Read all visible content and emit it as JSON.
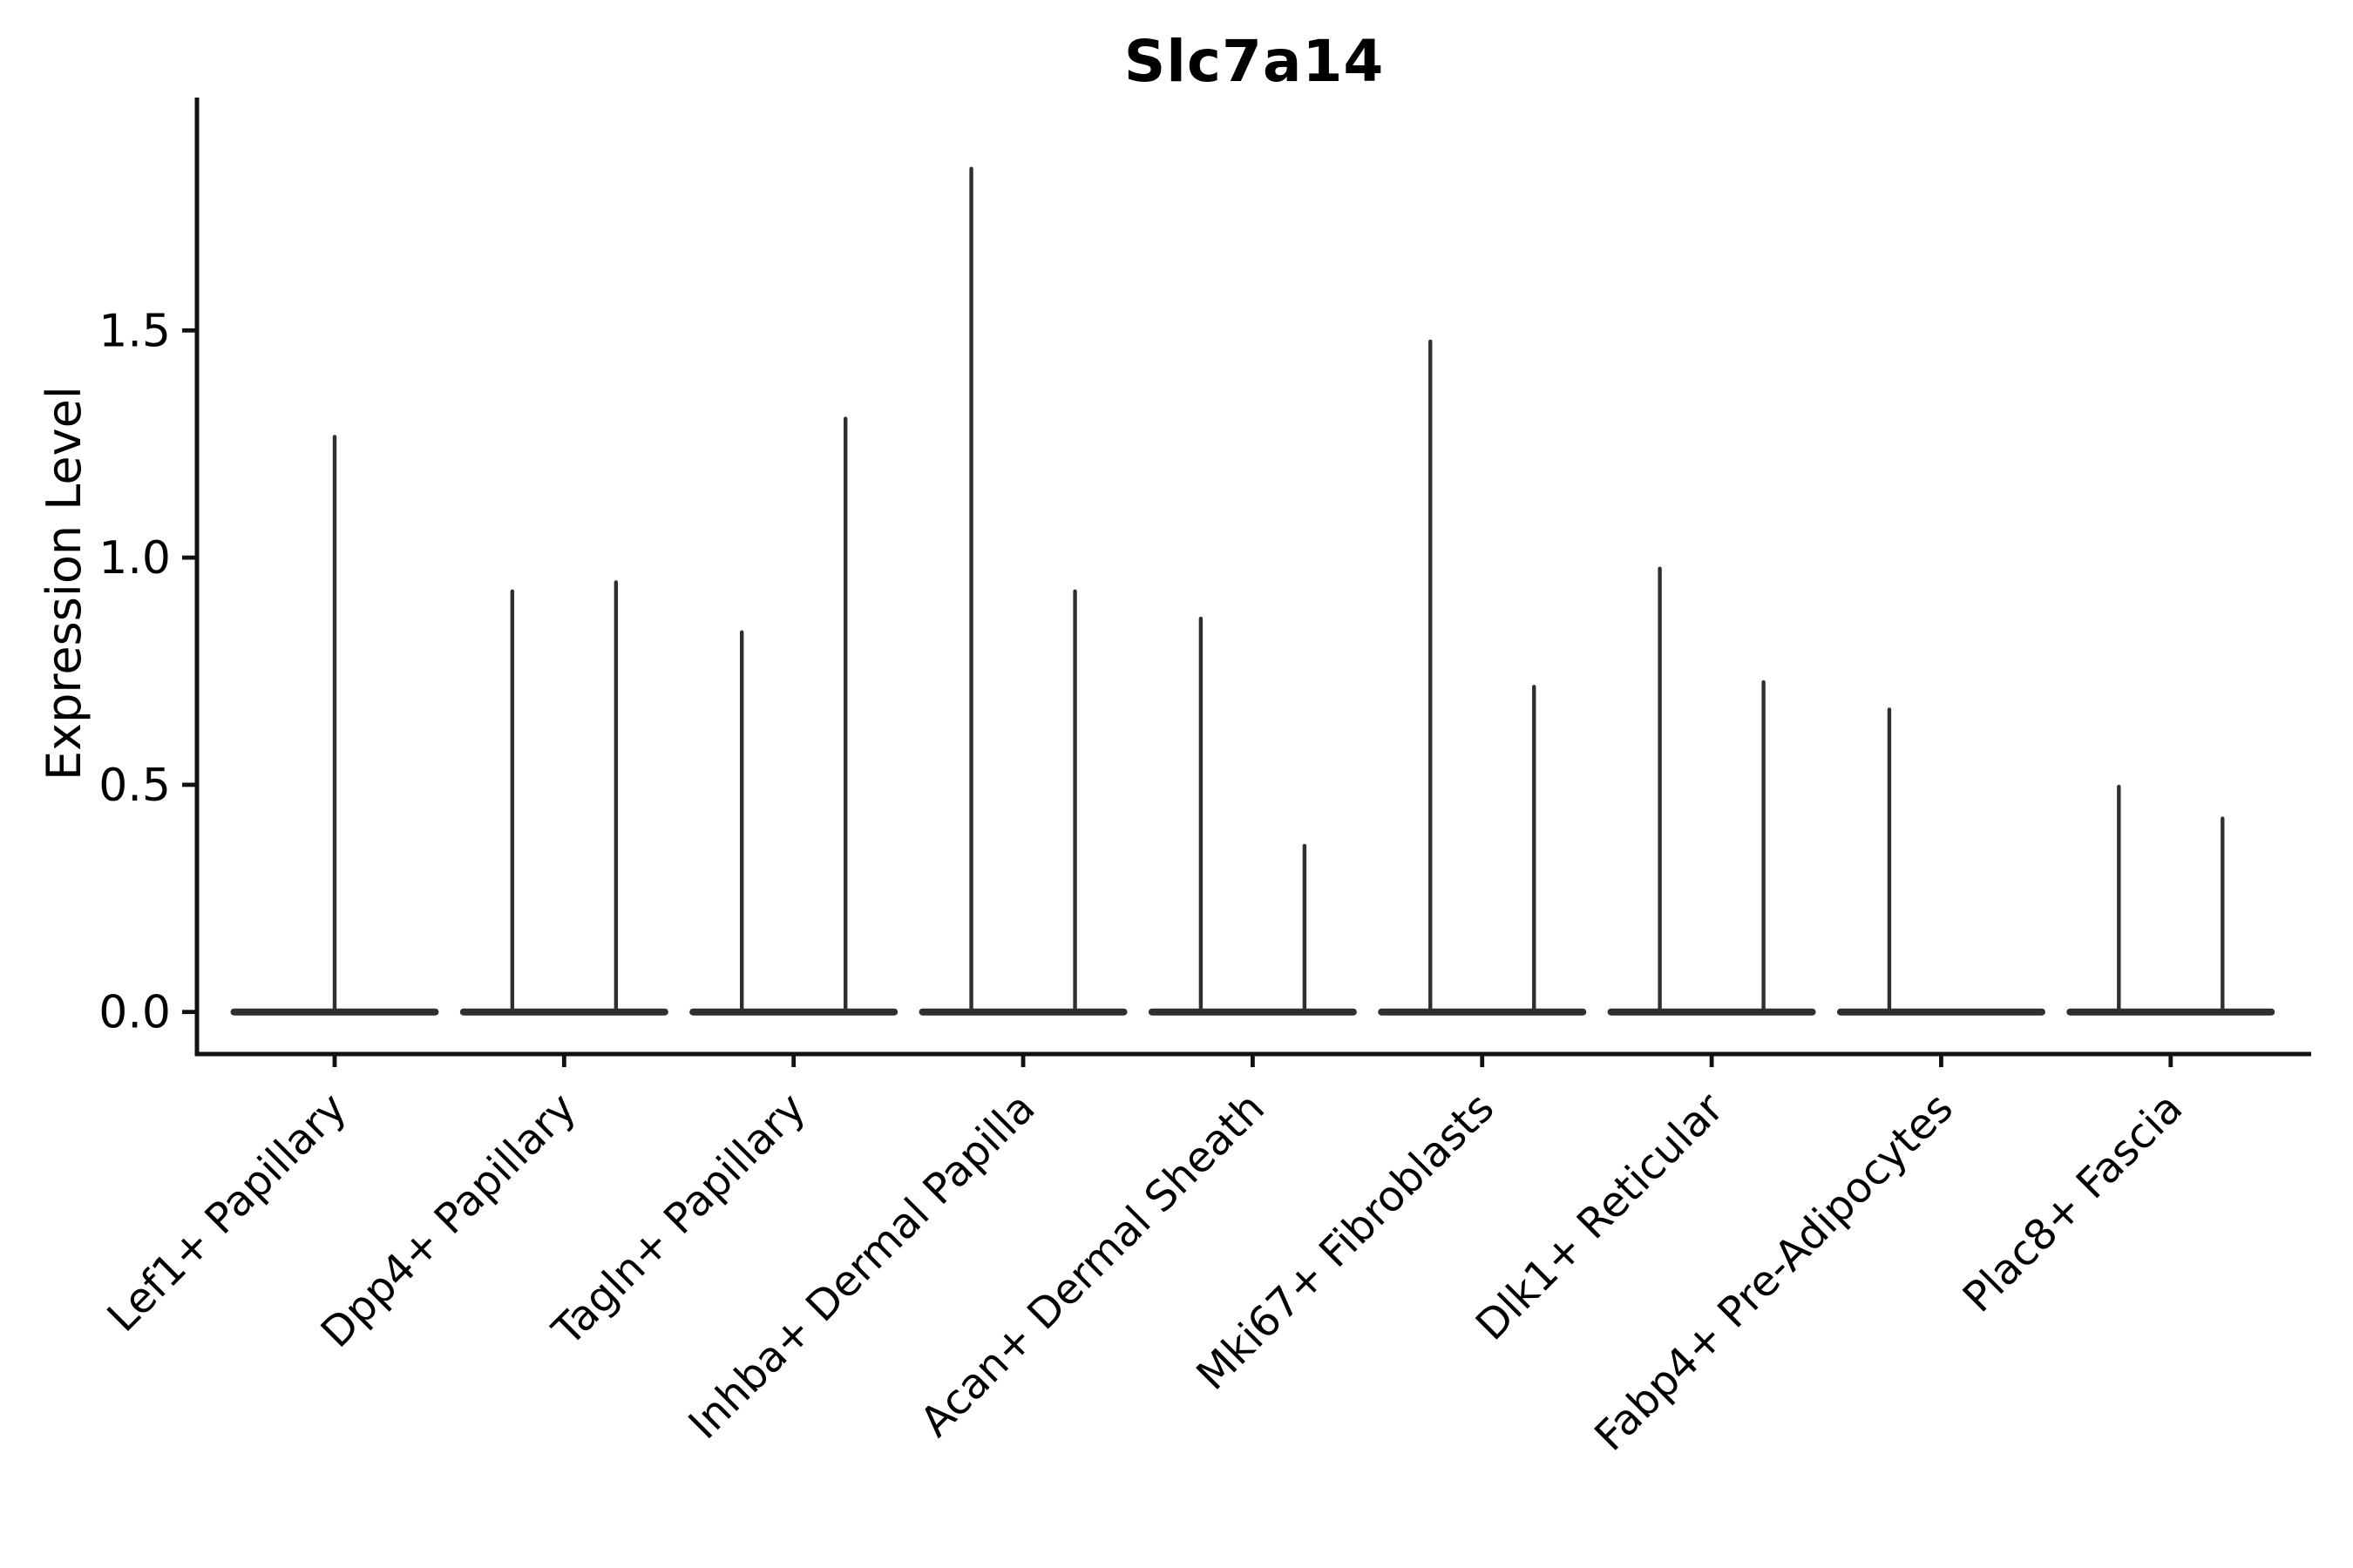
{
  "chart_data": {
    "type": "violin",
    "title": "Slc7a14",
    "xlabel": "",
    "ylabel": "Expression Level",
    "ylim": [
      0,
      2.0
    ],
    "yticks": [
      0.0,
      0.5,
      1.0,
      1.5
    ],
    "ytick_labels": [
      "0.0",
      "0.5",
      "1.0",
      "1.5"
    ],
    "grid": false,
    "legend": "none",
    "style_note": "needle-thin split violins; all density mass flattened at 0 with a thin spike rising to the max expression value",
    "line_color": "#2f2f2f",
    "axis_color": "#111111",
    "background_color": "#ffffff",
    "categories": [
      "Lef1+ Papillary",
      "Dpp4+ Papillary",
      "Tagln+ Papillary",
      "Inhba+ Dermal Papilla",
      "Acan+ Dermal Sheath",
      "Mki67+ Fibroblasts",
      "Dlk1+ Reticular",
      "Fabp4+ Pre-Adipocytes",
      "Plac8+ Fascia"
    ],
    "violins": [
      {
        "category": "Lef1+ Papillary",
        "baseline_value": 0,
        "spikes": [
          {
            "slot": "center",
            "peak": 1.27
          }
        ]
      },
      {
        "category": "Dpp4+ Papillary",
        "baseline_value": 0,
        "spikes": [
          {
            "slot": "left",
            "peak": 0.93
          },
          {
            "slot": "right",
            "peak": 0.95
          }
        ]
      },
      {
        "category": "Tagln+ Papillary",
        "baseline_value": 0,
        "spikes": [
          {
            "slot": "left",
            "peak": 0.84
          },
          {
            "slot": "right",
            "peak": 1.31
          }
        ]
      },
      {
        "category": "Inhba+ Dermal Papilla",
        "baseline_value": 0,
        "spikes": [
          {
            "slot": "left",
            "peak": 1.86
          },
          {
            "slot": "right",
            "peak": 0.93
          }
        ]
      },
      {
        "category": "Acan+ Dermal Sheath",
        "baseline_value": 0,
        "spikes": [
          {
            "slot": "left",
            "peak": 0.87
          },
          {
            "slot": "right",
            "peak": 0.37
          }
        ]
      },
      {
        "category": "Mki67+ Fibroblasts",
        "baseline_value": 0,
        "spikes": [
          {
            "slot": "left",
            "peak": 1.48
          },
          {
            "slot": "right",
            "peak": 0.72
          }
        ]
      },
      {
        "category": "Dlk1+ Reticular",
        "baseline_value": 0,
        "spikes": [
          {
            "slot": "left",
            "peak": 0.98
          },
          {
            "slot": "right",
            "peak": 0.73
          }
        ]
      },
      {
        "category": "Fabp4+ Pre-Adipocytes",
        "baseline_value": 0,
        "spikes": [
          {
            "slot": "left",
            "peak": 0.67
          }
        ]
      },
      {
        "category": "Plac8+ Fascia",
        "baseline_value": 0,
        "spikes": [
          {
            "slot": "left",
            "peak": 0.5
          },
          {
            "slot": "right",
            "peak": 0.43
          }
        ]
      }
    ]
  }
}
